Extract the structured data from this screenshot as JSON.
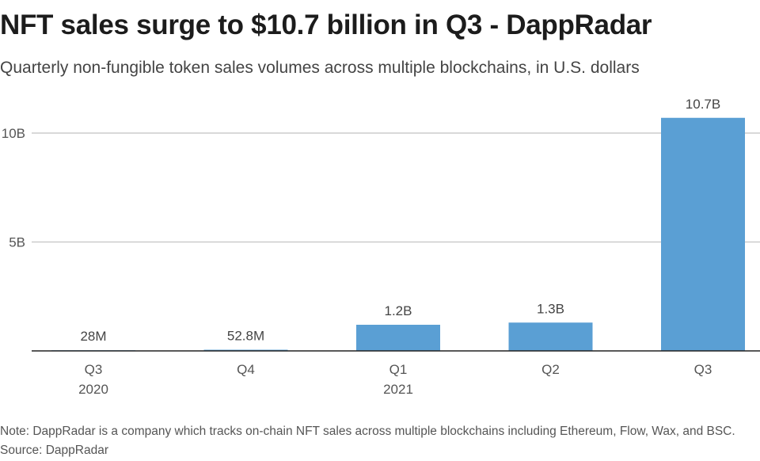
{
  "header": {
    "title": "NFT sales surge to $10.7 billion in Q3 - DappRadar",
    "subtitle": "Quarterly non-fungible token sales volumes across multiple blockchains, in U.S. dollars"
  },
  "footer": {
    "note": "Note: DappRadar is a company which tracks on-chain NFT sales across multiple blockchains including Ethereum, Flow, Wax, and BSC.",
    "source": "Source: DappRadar"
  },
  "colors": {
    "bar": "#5a9fd4",
    "gridline": "#cccccc",
    "axis": "#222222"
  },
  "chart_data": {
    "type": "bar",
    "title": "NFT sales surge to $10.7 billion in Q3 - DappRadar",
    "subtitle": "Quarterly non-fungible token sales volumes across multiple blockchains, in U.S. dollars",
    "xlabel": "",
    "ylabel": "",
    "unit": "USD billions",
    "categories": [
      {
        "label": "Q3",
        "year": "2020"
      },
      {
        "label": "Q4",
        "year": ""
      },
      {
        "label": "Q1",
        "year": "2021"
      },
      {
        "label": "Q2",
        "year": ""
      },
      {
        "label": "Q3",
        "year": ""
      }
    ],
    "values": [
      0.028,
      0.0528,
      1.2,
      1.3,
      10.7
    ],
    "data_labels": [
      "28M",
      "52.8M",
      "1.2B",
      "1.3B",
      "10.7B"
    ],
    "yticks": [
      {
        "value": 5,
        "label": "5B"
      },
      {
        "value": 10,
        "label": "10B"
      }
    ],
    "ylim": [
      0,
      10.7
    ],
    "grid": true,
    "legend": "none"
  }
}
